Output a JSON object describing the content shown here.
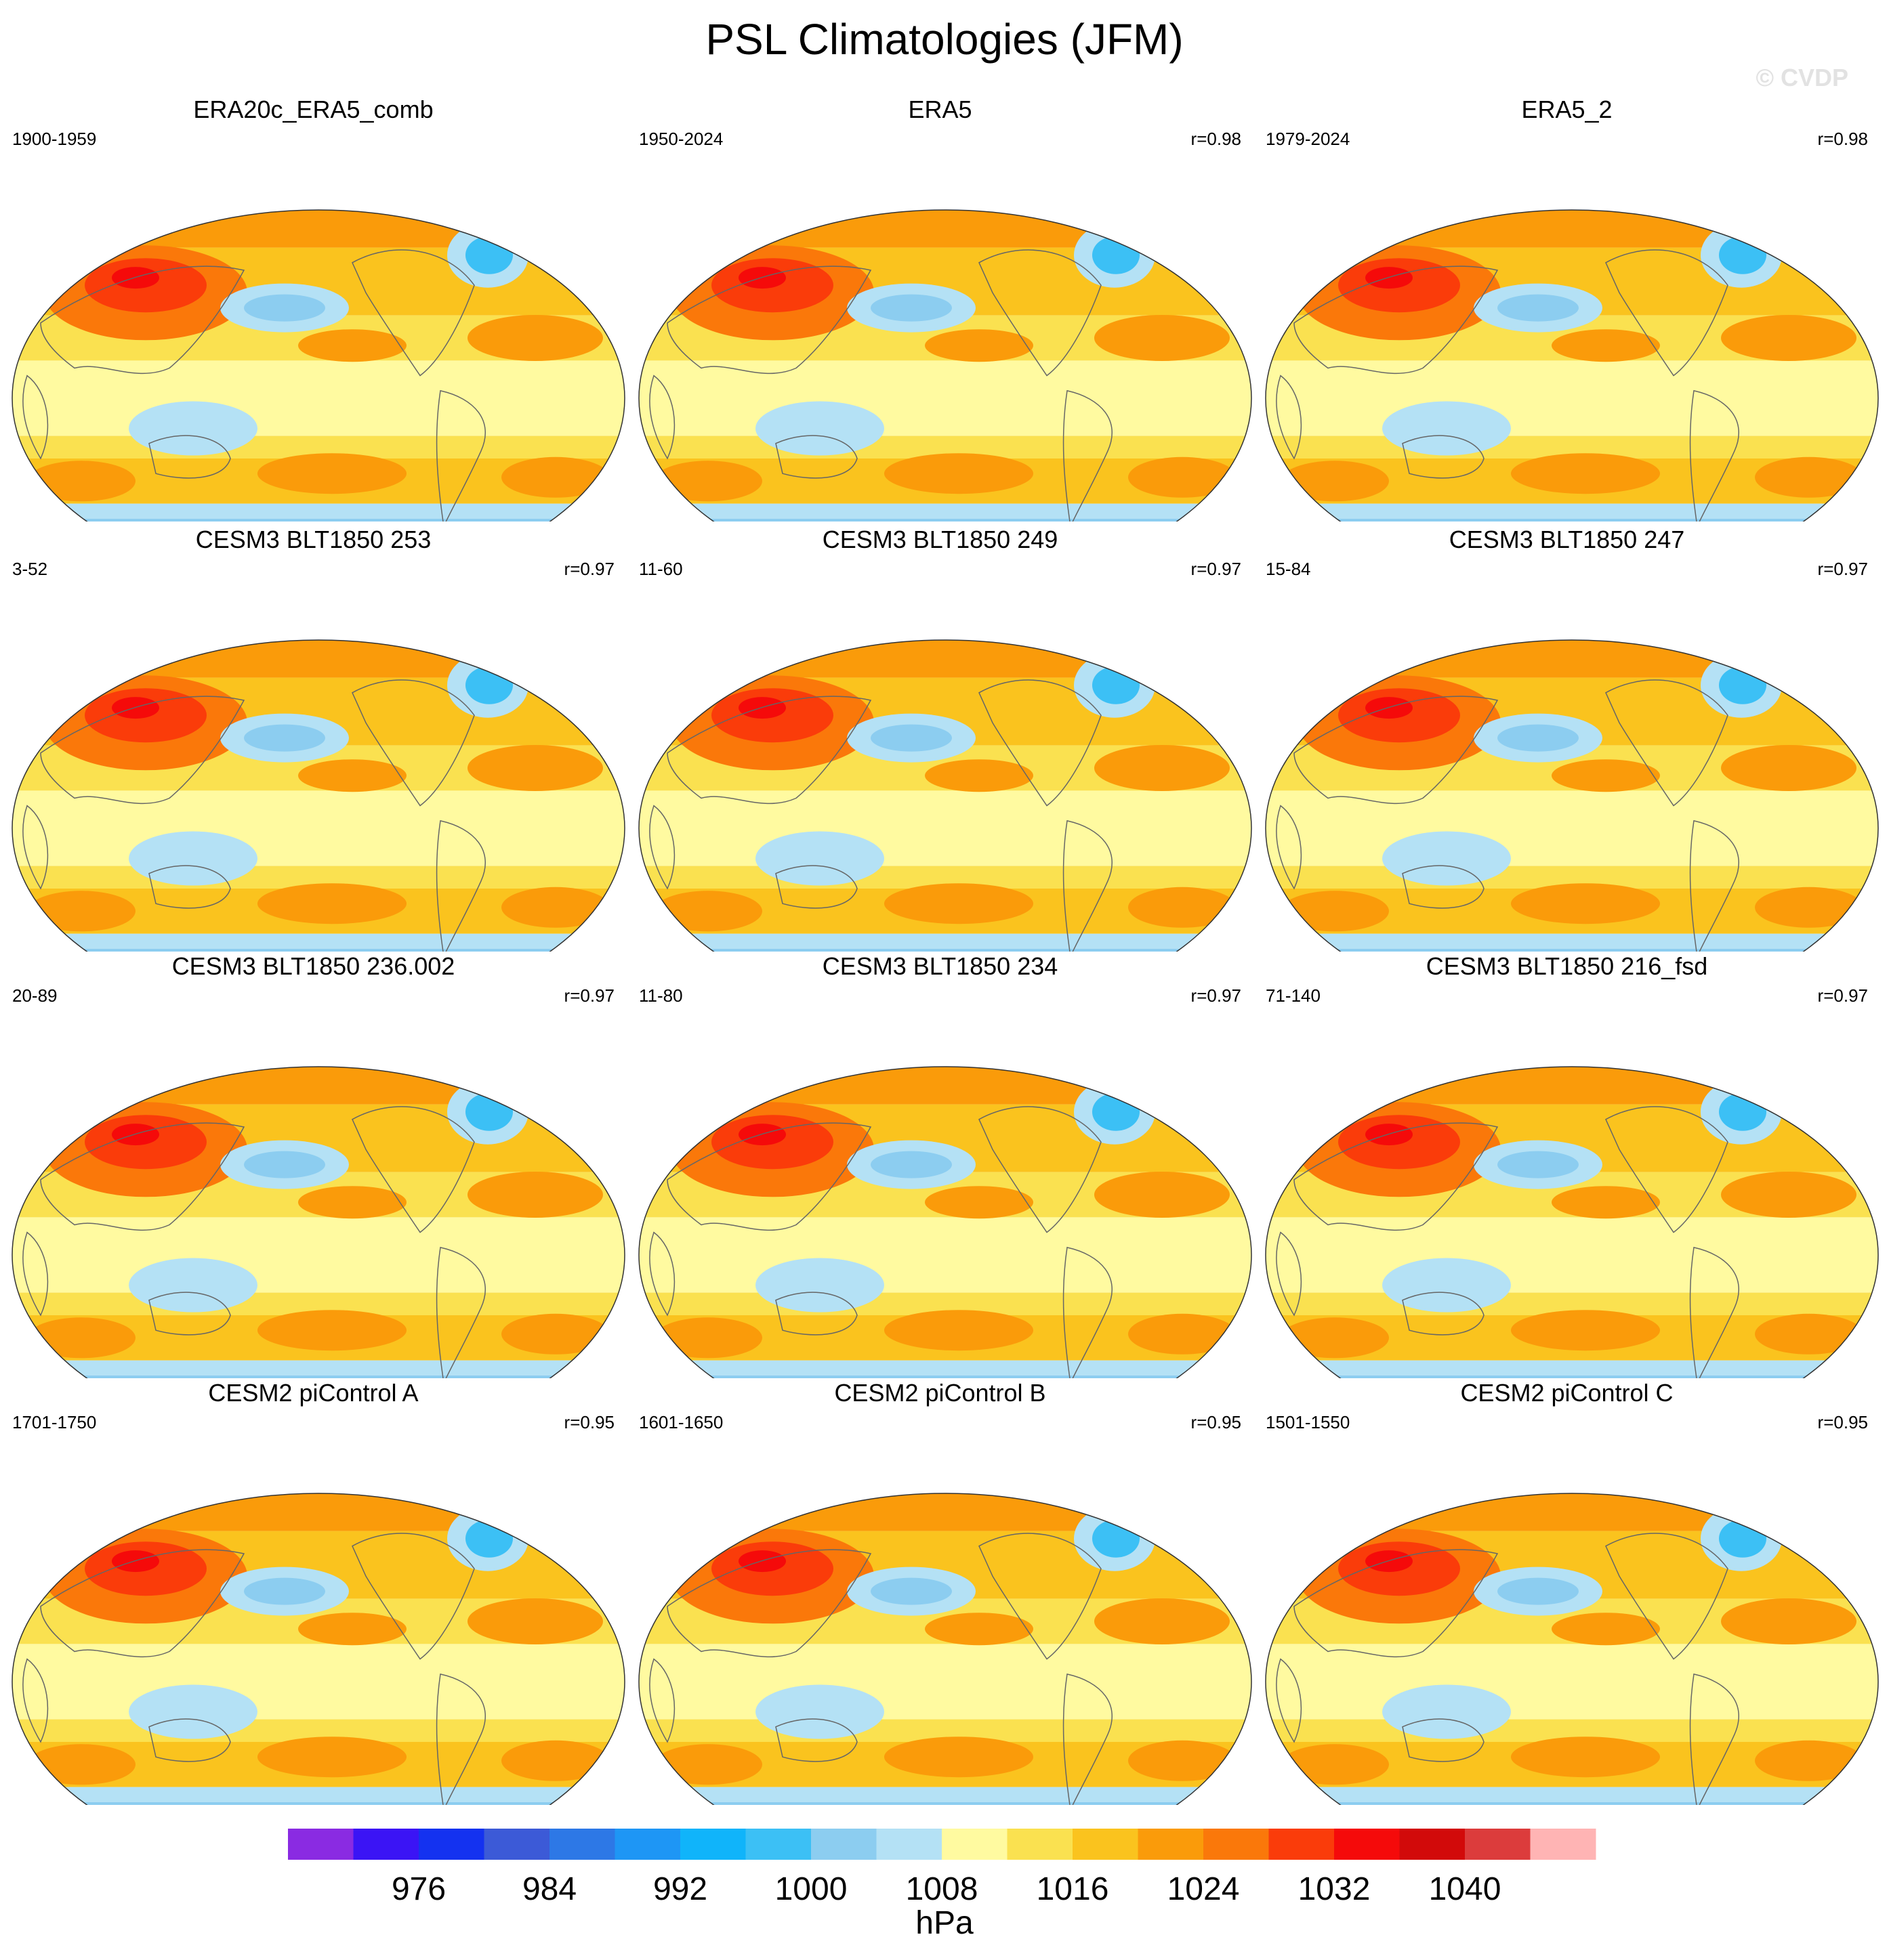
{
  "title": "PSL Climatologies (JFM)",
  "watermark": "© CVDP",
  "panels": [
    {
      "title": "ERA20c_ERA5_comb",
      "period": "1900-1959",
      "corr": ""
    },
    {
      "title": "ERA5",
      "period": "1950-2024",
      "corr": "r=0.98"
    },
    {
      "title": "ERA5_2",
      "period": "1979-2024",
      "corr": "r=0.98"
    },
    {
      "title": "CESM3 BLT1850 253",
      "period": "3-52",
      "corr": "r=0.97"
    },
    {
      "title": "CESM3 BLT1850 249",
      "period": "11-60",
      "corr": "r=0.97"
    },
    {
      "title": "CESM3 BLT1850 247",
      "period": "15-84",
      "corr": "r=0.97"
    },
    {
      "title": "CESM3 BLT1850 236.002",
      "period": "20-89",
      "corr": "r=0.97"
    },
    {
      "title": "CESM3 BLT1850 234",
      "period": "11-80",
      "corr": "r=0.97"
    },
    {
      "title": "CESM3 BLT1850 216_fsd",
      "period": "71-140",
      "corr": "r=0.97"
    },
    {
      "title": "CESM2 piControl A",
      "period": "1701-1750",
      "corr": "r=0.95"
    },
    {
      "title": "CESM2 piControl B",
      "period": "1601-1650",
      "corr": "r=0.95"
    },
    {
      "title": "CESM2 piControl C",
      "period": "1501-1550",
      "corr": "r=0.95"
    }
  ],
  "colorbar": {
    "colors": [
      "#8a2be2",
      "#3b14f5",
      "#1432f0",
      "#3c5ad7",
      "#2d78e6",
      "#1e96f5",
      "#10b4fa",
      "#3cc0f5",
      "#8ccdf0",
      "#b4e1f5",
      "#fffaa0",
      "#fae150",
      "#fac31e",
      "#fa9b0a",
      "#fa780a",
      "#fa3c0a",
      "#f50a0a",
      "#d20a0a",
      "#dc3c3c",
      "#ffb4b4"
    ],
    "tick_labels": [
      "976",
      "984",
      "992",
      "1000",
      "1008",
      "1016",
      "1024",
      "1032",
      "1040"
    ],
    "units": "hPa"
  }
}
